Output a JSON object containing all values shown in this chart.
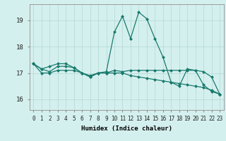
{
  "title": "",
  "xlabel": "Humidex (Indice chaleur)",
  "background_color": "#d4f0ee",
  "grid_color": "#b8dbd8",
  "line_color": "#1a7a6e",
  "xlim_min": -0.5,
  "xlim_max": 23.5,
  "ylim_min": 15.6,
  "ylim_max": 19.6,
  "yticks": [
    16,
    17,
    18,
    19
  ],
  "xticks": [
    0,
    1,
    2,
    3,
    4,
    5,
    6,
    7,
    8,
    9,
    10,
    11,
    12,
    13,
    14,
    15,
    16,
    17,
    18,
    19,
    20,
    21,
    22,
    23
  ],
  "series1_x": [
    0,
    1,
    2,
    3,
    4,
    5,
    6,
    7,
    8,
    9,
    10,
    11,
    12,
    13,
    14,
    15,
    16,
    17,
    18,
    19,
    20,
    21,
    22,
    23
  ],
  "series1_y": [
    17.35,
    17.15,
    17.25,
    17.35,
    17.35,
    17.2,
    17.0,
    16.9,
    17.0,
    17.05,
    18.55,
    19.15,
    18.3,
    19.3,
    19.05,
    18.3,
    17.6,
    16.65,
    16.5,
    17.15,
    17.1,
    16.55,
    16.3,
    16.2
  ],
  "series2_x": [
    0,
    1,
    2,
    3,
    4,
    5,
    6,
    7,
    8,
    9,
    10,
    11,
    12,
    13,
    14,
    15,
    16,
    17,
    18,
    19,
    20,
    21,
    22,
    23
  ],
  "series2_y": [
    17.35,
    17.15,
    17.05,
    17.25,
    17.25,
    17.2,
    17.0,
    16.85,
    17.0,
    17.0,
    17.1,
    17.05,
    17.1,
    17.1,
    17.1,
    17.1,
    17.1,
    17.1,
    17.1,
    17.1,
    17.1,
    17.05,
    16.85,
    16.2
  ],
  "series3_x": [
    0,
    1,
    2,
    3,
    4,
    5,
    6,
    7,
    8,
    9,
    10,
    11,
    12,
    13,
    14,
    15,
    16,
    17,
    18,
    19,
    20,
    21,
    22,
    23
  ],
  "series3_y": [
    17.35,
    17.0,
    17.0,
    17.1,
    17.1,
    17.1,
    17.0,
    16.85,
    17.0,
    17.0,
    17.0,
    17.0,
    16.9,
    16.85,
    16.8,
    16.75,
    16.7,
    16.65,
    16.6,
    16.55,
    16.5,
    16.45,
    16.35,
    16.2
  ],
  "marker_size": 2.5,
  "line_width": 0.9,
  "xlabel_fontsize": 6.5,
  "tick_fontsize": 5.5
}
